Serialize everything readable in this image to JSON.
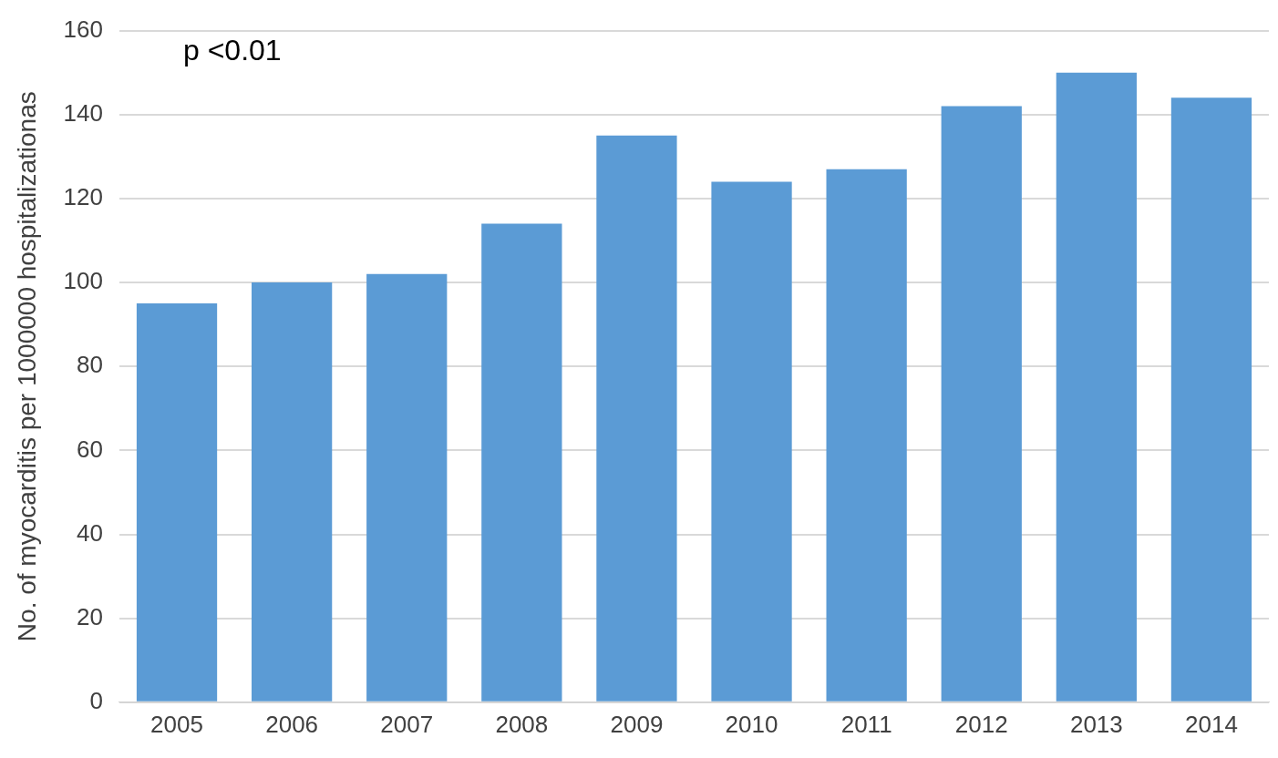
{
  "chart_data": {
    "type": "bar",
    "ylabel": "No. of myocarditis per 1000000 hospitalizationas",
    "annotations": [
      "p <0.01"
    ],
    "categories": [
      "2005",
      "2006",
      "2007",
      "2008",
      "2009",
      "2010",
      "2011",
      "2012",
      "2013",
      "2014"
    ],
    "values": [
      95,
      100,
      102,
      114,
      135,
      124,
      127,
      142,
      150,
      144
    ],
    "color": "#5b9bd5",
    "ylim": [
      0,
      160
    ],
    "yticks": [
      0,
      20,
      40,
      60,
      80,
      100,
      120,
      140,
      160
    ],
    "grid": "y"
  }
}
